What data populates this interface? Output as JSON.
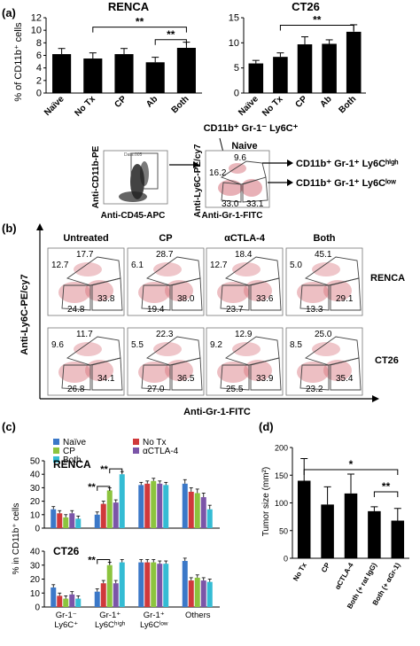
{
  "panel_labels": {
    "a": "(a)",
    "b": "(b)",
    "c": "(c)",
    "d": "(d)"
  },
  "colors": {
    "naive": "#3b78c8",
    "no_tx": "#d0393b",
    "cp": "#8cc43e",
    "actla4": "#7b55a8",
    "both": "#34bcd4",
    "bar_black": "#000000",
    "dot_red": "#d6707a"
  },
  "panel_a": {
    "schematic": {
      "left_plot": {
        "ylabel": "Anti-CD11b-PE",
        "xlabel": "Anti-CD45-APC",
        "file": "Data.005"
      },
      "right_plot": {
        "title": "Naive",
        "ylabel": "Anti-Ly6C-PE/cy7",
        "xlabel": "Anti-Gr-1-FITC",
        "values": [
          "16.2",
          "9.6",
          "33.0",
          "33.1"
        ]
      },
      "top_label": "CD11b⁺ Gr-1⁻ Ly6C⁺",
      "high_label": "CD11b⁺ Gr-1⁺ Ly6Cʰⁱᵍʰ",
      "low_label": "CD11b⁺ Gr-1⁺ Ly6Cˡᵒʷ"
    }
  },
  "panel_b": {
    "columns": [
      "Untreated",
      "CP",
      "αCTLA-4",
      "Both"
    ],
    "rows": [
      {
        "name": "RENCA",
        "plots": [
          {
            "tl": "12.7",
            "top": "17.7",
            "bl": "24.8",
            "br": "33.8"
          },
          {
            "tl": "6.1",
            "top": "28.7",
            "bl": "19.4",
            "br": "38.0"
          },
          {
            "tl": "12.7",
            "top": "18.4",
            "bl": "23.7",
            "br": "33.6"
          },
          {
            "tl": "5.0",
            "top": "45.1",
            "bl": "13.3",
            "br": "29.1"
          }
        ]
      },
      {
        "name": "CT26",
        "plots": [
          {
            "tl": "9.6",
            "top": "11.7",
            "bl": "26.8",
            "br": "34.1"
          },
          {
            "tl": "5.5",
            "top": "22.3",
            "bl": "27.0",
            "br": "36.5"
          },
          {
            "tl": "9.2",
            "top": "12.9",
            "bl": "25.5",
            "br": "33.9"
          },
          {
            "tl": "8.5",
            "top": "25.0",
            "bl": "23.2",
            "br": "35.4"
          }
        ]
      }
    ],
    "ylabel": "Anti-Ly6C-PE/cy7",
    "xlabel": "Anti-Gr-1-FITC"
  },
  "chart_data": [
    {
      "id": "a-renca",
      "type": "bar",
      "title": "RENCA",
      "categories": [
        "Naïve",
        "No Tx",
        "CP",
        "Ab",
        "Both"
      ],
      "values": [
        6.2,
        5.5,
        6.2,
        4.9,
        7.2
      ],
      "errors": [
        0.9,
        0.9,
        0.9,
        0.8,
        0.9
      ],
      "ylabel": "% of CD11b⁺ cells",
      "ylim": [
        0,
        12
      ],
      "yticks": [
        0,
        2,
        4,
        6,
        8,
        10,
        12
      ],
      "significance": [
        "**",
        "**"
      ]
    },
    {
      "id": "a-ct26",
      "type": "bar",
      "title": "CT26",
      "categories": [
        "Naïve",
        "No Tx",
        "CP",
        "Ab",
        "Both"
      ],
      "values": [
        5.9,
        7.2,
        9.7,
        9.8,
        12.2
      ],
      "errors": [
        0.6,
        0.8,
        1.5,
        0.8,
        1.4
      ],
      "ylim": [
        0,
        15
      ],
      "yticks": [
        0,
        5,
        10,
        15
      ],
      "significance": [
        "**"
      ]
    },
    {
      "id": "c-renca",
      "type": "bar",
      "title": "RENCA",
      "categories": [
        "Gr-1⁻ Ly6C⁺",
        "Gr-1⁺ Ly6Cʰⁱᵍʰ",
        "Gr-1⁺ Ly6Cˡᵒʷ",
        "Others"
      ],
      "series": [
        {
          "name": "Naïve",
          "values": [
            14,
            10,
            32,
            33
          ]
        },
        {
          "name": "No Tx",
          "values": [
            11,
            18,
            33,
            27
          ]
        },
        {
          "name": "CP",
          "values": [
            8,
            28,
            35,
            26
          ]
        },
        {
          "name": "αCTLA-4",
          "values": [
            11,
            19,
            33,
            23
          ]
        },
        {
          "name": "Both",
          "values": [
            7,
            40,
            32,
            14
          ]
        }
      ],
      "errors": [
        2,
        2,
        2,
        3
      ],
      "ylabel": "% in CD11b⁺ cells",
      "ylim": [
        0,
        50
      ],
      "yticks": [
        0,
        10,
        20,
        30,
        40,
        50
      ],
      "significance": [
        "**",
        "**"
      ]
    },
    {
      "id": "c-ct26",
      "type": "bar",
      "title": "CT26",
      "categories": [
        "Gr-1⁻ Ly6C⁺",
        "Gr-1⁺ Ly6Cʰⁱᵍʰ",
        "Gr-1⁺ Ly6Cˡᵒʷ",
        "Others"
      ],
      "series": [
        {
          "name": "Naïve",
          "values": [
            14,
            11,
            32,
            33
          ]
        },
        {
          "name": "No Tx",
          "values": [
            8,
            17,
            32,
            19
          ]
        },
        {
          "name": "CP",
          "values": [
            6,
            30,
            32,
            21
          ]
        },
        {
          "name": "αCTLA-4",
          "values": [
            9,
            17,
            31,
            19
          ]
        },
        {
          "name": "Both",
          "values": [
            6,
            32,
            31,
            18
          ]
        }
      ],
      "errors": [
        2,
        2,
        2,
        2
      ],
      "ylim": [
        0,
        40
      ],
      "yticks": [
        0,
        10,
        20,
        30,
        40
      ],
      "significance": [
        "**"
      ]
    },
    {
      "id": "d",
      "type": "bar",
      "categories": [
        "No Tx",
        "CP",
        "αCTLA-4",
        "Both (+ rat IgG)",
        "Both (+ αGr-1)"
      ],
      "values": [
        140,
        97,
        117,
        85,
        68
      ],
      "errors": [
        40,
        32,
        35,
        8,
        22
      ],
      "ylabel": "Tumor size (mm²)",
      "ylim": [
        0,
        200
      ],
      "yticks": [
        0,
        50,
        100,
        150,
        200
      ],
      "significance": [
        "*",
        "**"
      ]
    }
  ]
}
